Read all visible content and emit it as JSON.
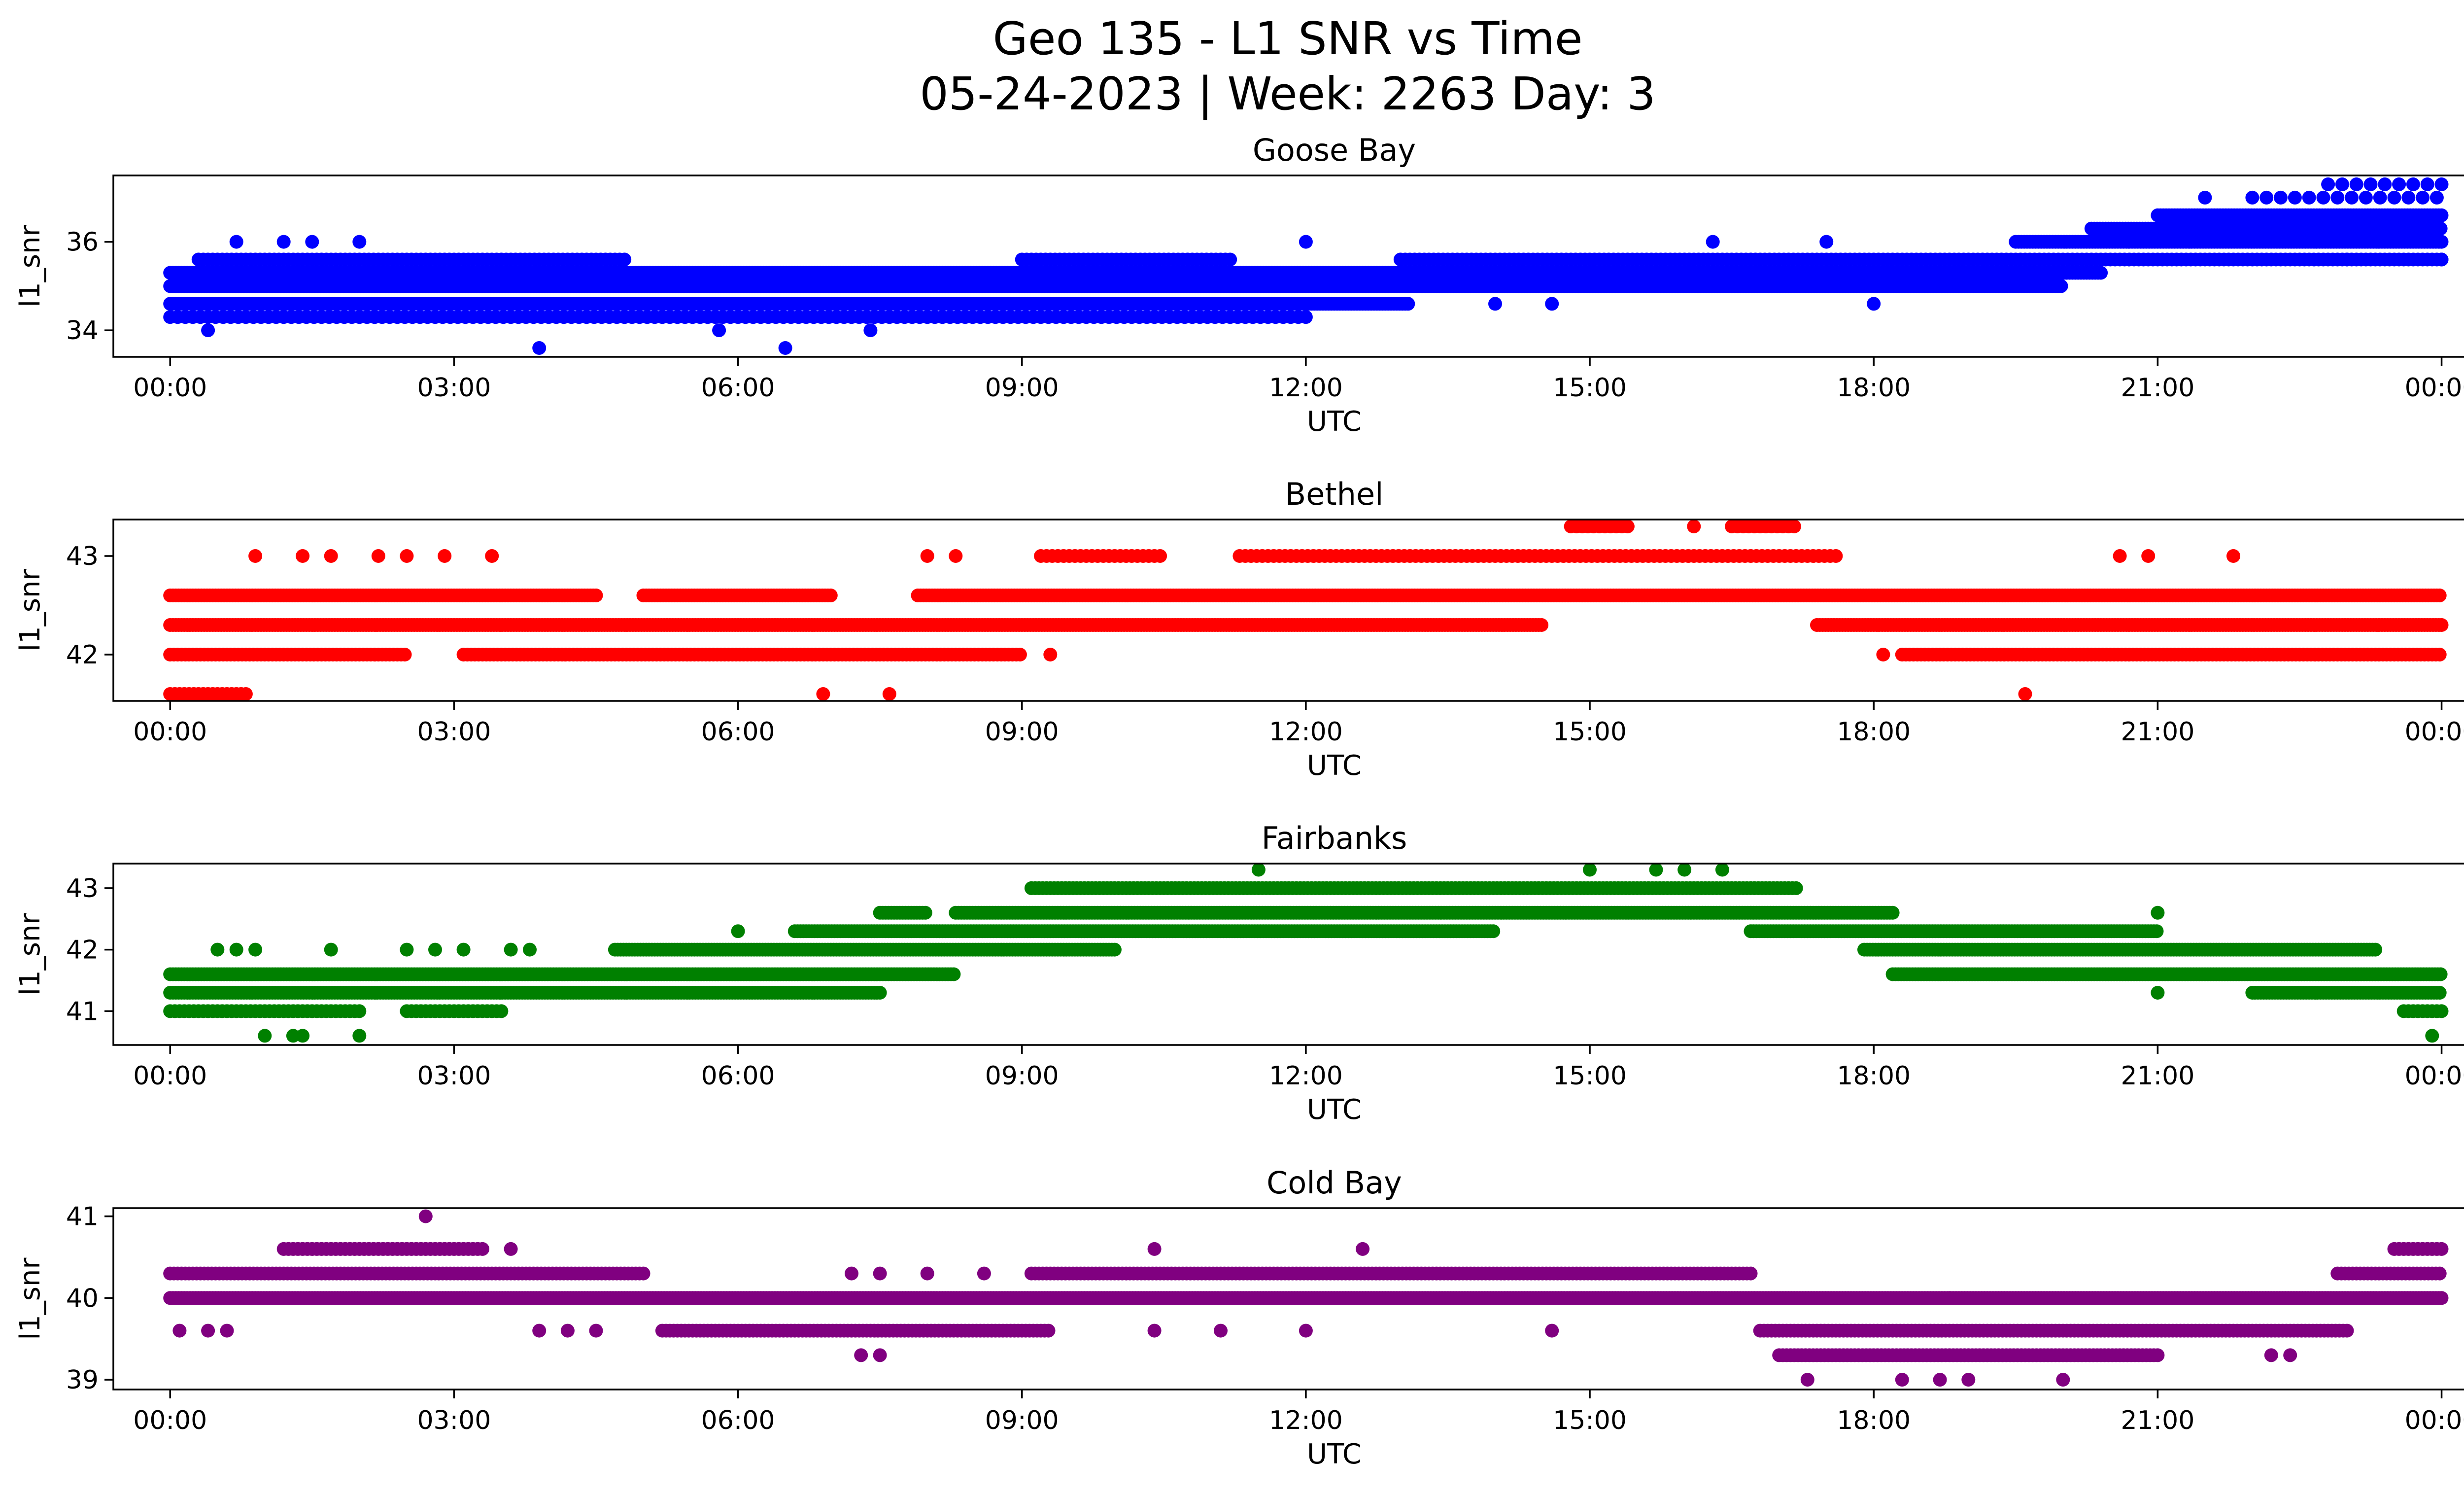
{
  "figure": {
    "title_line1": "Geo 135 - L1 SNR vs Time",
    "title_line2": "05-24-2023 | Week: 2263 Day: 3"
  },
  "chart_data": [
    {
      "type": "scatter",
      "title": "Goose Bay",
      "xlabel": "UTC",
      "ylabel": "l1_snr",
      "xlim_hours": [
        -0.6,
        25.2
      ],
      "ylim": [
        33.4,
        37.5
      ],
      "x_ticks": [
        "00:00",
        "03:00",
        "06:00",
        "09:00",
        "12:00",
        "15:00",
        "18:00",
        "21:00",
        "00:00"
      ],
      "y_ticks": [
        34,
        36
      ],
      "color": "#0000ff",
      "bands": [
        {
          "y": 34.3,
          "x": [
            [
              0.0,
              12.0
            ]
          ],
          "step": 0.08
        },
        {
          "y": 34.6,
          "x": [
            [
              0.0,
              13.1
            ]
          ],
          "step": 0.03
        },
        {
          "y": 35.0,
          "x": [
            [
              0.0,
              20.0
            ]
          ],
          "step": 0.03
        },
        {
          "y": 35.3,
          "x": [
            [
              0.0,
              20.4
            ]
          ],
          "step": 0.03
        },
        {
          "y": 35.6,
          "x": [
            [
              0.3,
              4.8
            ],
            [
              9.0,
              11.2
            ],
            [
              13.0,
              24.0
            ]
          ],
          "step": 0.05
        },
        {
          "y": 36.0,
          "x": [
            [
              19.5,
              24.0
            ]
          ],
          "step": 0.03
        },
        {
          "y": 36.3,
          "x": [
            [
              20.3,
              24.0
            ]
          ],
          "step": 0.03
        },
        {
          "y": 36.6,
          "x": [
            [
              21.0,
              24.0
            ]
          ],
          "step": 0.03
        },
        {
          "y": 37.0,
          "x": [
            [
              22.0,
              24.0
            ]
          ],
          "step": 0.15
        },
        {
          "y": 37.3,
          "x": [
            [
              22.8,
              24.0
            ]
          ],
          "step": 0.15
        }
      ],
      "points": [
        {
          "x": 0.4,
          "y": 34.0
        },
        {
          "x": 3.9,
          "y": 33.6
        },
        {
          "x": 6.5,
          "y": 33.6
        },
        {
          "x": 0.7,
          "y": 36.0
        },
        {
          "x": 1.2,
          "y": 36.0
        },
        {
          "x": 1.5,
          "y": 36.0
        },
        {
          "x": 2.0,
          "y": 36.0
        },
        {
          "x": 5.8,
          "y": 34.0
        },
        {
          "x": 7.4,
          "y": 34.0
        },
        {
          "x": 12.0,
          "y": 36.0
        },
        {
          "x": 14.0,
          "y": 34.6
        },
        {
          "x": 14.6,
          "y": 34.6
        },
        {
          "x": 16.3,
          "y": 36.0
        },
        {
          "x": 17.5,
          "y": 36.0
        },
        {
          "x": 18.0,
          "y": 34.6
        },
        {
          "x": 21.5,
          "y": 37.0
        },
        {
          "x": 23.0,
          "y": 35.6
        },
        {
          "x": 24.0,
          "y": 35.6
        }
      ]
    },
    {
      "type": "scatter",
      "title": "Bethel",
      "xlabel": "UTC",
      "ylabel": "l1_snr",
      "xlim_hours": [
        -0.6,
        25.2
      ],
      "ylim": [
        41.53,
        43.37
      ],
      "x_ticks": [
        "00:00",
        "03:00",
        "06:00",
        "09:00",
        "12:00",
        "15:00",
        "18:00",
        "21:00",
        "00:00"
      ],
      "y_ticks": [
        42,
        43
      ],
      "color": "#ff0000",
      "bands": [
        {
          "y": 41.6,
          "x": [
            [
              0.0,
              0.8
            ]
          ],
          "step": 0.05
        },
        {
          "y": 42.0,
          "x": [
            [
              0.0,
              2.5
            ],
            [
              3.1,
              9.0
            ],
            [
              18.3,
              24.0
            ]
          ],
          "step": 0.04
        },
        {
          "y": 42.3,
          "x": [
            [
              0.0,
              14.5
            ],
            [
              17.4,
              24.0
            ]
          ],
          "step": 0.03
        },
        {
          "y": 42.6,
          "x": [
            [
              0.0,
              4.5
            ],
            [
              5.0,
              7.0
            ],
            [
              7.9,
              24.0
            ]
          ],
          "step": 0.03
        },
        {
          "y": 43.0,
          "x": [
            [
              9.2,
              10.5
            ],
            [
              11.3,
              17.6
            ]
          ],
          "step": 0.06
        },
        {
          "y": 43.3,
          "x": [
            [
              14.8,
              15.4
            ],
            [
              16.5,
              17.2
            ]
          ],
          "step": 0.06
        }
      ],
      "points": [
        {
          "x": 0.9,
          "y": 43.0
        },
        {
          "x": 1.4,
          "y": 43.0
        },
        {
          "x": 1.7,
          "y": 43.0
        },
        {
          "x": 2.2,
          "y": 43.0
        },
        {
          "x": 2.5,
          "y": 43.0
        },
        {
          "x": 2.9,
          "y": 43.0
        },
        {
          "x": 3.4,
          "y": 43.0
        },
        {
          "x": 8.0,
          "y": 43.0
        },
        {
          "x": 8.3,
          "y": 43.0
        },
        {
          "x": 6.9,
          "y": 41.6
        },
        {
          "x": 7.6,
          "y": 41.6
        },
        {
          "x": 9.3,
          "y": 42.0
        },
        {
          "x": 16.1,
          "y": 43.3
        },
        {
          "x": 18.1,
          "y": 42.0
        },
        {
          "x": 19.6,
          "y": 41.6
        },
        {
          "x": 20.6,
          "y": 43.0
        },
        {
          "x": 20.9,
          "y": 43.0
        },
        {
          "x": 21.8,
          "y": 43.0
        }
      ]
    },
    {
      "type": "scatter",
      "title": "Fairbanks",
      "xlabel": "UTC",
      "ylabel": "l1_snr",
      "xlim_hours": [
        -0.6,
        25.2
      ],
      "ylim": [
        40.45,
        43.4
      ],
      "x_ticks": [
        "00:00",
        "03:00",
        "06:00",
        "09:00",
        "12:00",
        "15:00",
        "18:00",
        "21:00",
        "00:00"
      ],
      "y_ticks": [
        41,
        42,
        43
      ],
      "color": "#008000",
      "bands": [
        {
          "y": 41.0,
          "x": [
            [
              0.0,
              2.0
            ],
            [
              2.5,
              3.5
            ],
            [
              23.6,
              24.0
            ]
          ],
          "step": 0.05
        },
        {
          "y": 41.3,
          "x": [
            [
              0.0,
              7.5
            ],
            [
              22.0,
              24.0
            ]
          ],
          "step": 0.03
        },
        {
          "y": 41.6,
          "x": [
            [
              0.0,
              8.3
            ],
            [
              18.2,
              24.0
            ]
          ],
          "step": 0.03
        },
        {
          "y": 42.0,
          "x": [
            [
              4.7,
              10.0
            ],
            [
              17.9,
              23.3
            ]
          ],
          "step": 0.03
        },
        {
          "y": 42.3,
          "x": [
            [
              6.6,
              14.0
            ],
            [
              16.7,
              21.0
            ]
          ],
          "step": 0.03
        },
        {
          "y": 42.6,
          "x": [
            [
              7.5,
              8.0
            ],
            [
              8.3,
              18.2
            ]
          ],
          "step": 0.03
        },
        {
          "y": 43.0,
          "x": [
            [
              9.1,
              17.2
            ]
          ],
          "step": 0.04
        }
      ],
      "points": [
        {
          "x": 1.0,
          "y": 40.6
        },
        {
          "x": 1.3,
          "y": 40.6
        },
        {
          "x": 1.4,
          "y": 40.6
        },
        {
          "x": 2.0,
          "y": 40.6
        },
        {
          "x": 0.5,
          "y": 42.0
        },
        {
          "x": 0.7,
          "y": 42.0
        },
        {
          "x": 0.9,
          "y": 42.0
        },
        {
          "x": 1.7,
          "y": 42.0
        },
        {
          "x": 2.5,
          "y": 42.0
        },
        {
          "x": 2.8,
          "y": 42.0
        },
        {
          "x": 3.1,
          "y": 42.0
        },
        {
          "x": 3.6,
          "y": 42.0
        },
        {
          "x": 3.8,
          "y": 42.0
        },
        {
          "x": 6.0,
          "y": 42.3
        },
        {
          "x": 11.5,
          "y": 43.3
        },
        {
          "x": 15.0,
          "y": 43.3
        },
        {
          "x": 15.7,
          "y": 43.3
        },
        {
          "x": 16.0,
          "y": 43.3
        },
        {
          "x": 16.4,
          "y": 43.3
        },
        {
          "x": 21.0,
          "y": 42.6
        },
        {
          "x": 21.0,
          "y": 41.3
        },
        {
          "x": 23.9,
          "y": 40.6
        }
      ]
    },
    {
      "type": "scatter",
      "title": "Cold Bay",
      "xlabel": "UTC",
      "ylabel": "l1_snr",
      "xlim_hours": [
        -0.6,
        25.2
      ],
      "ylim": [
        38.88,
        41.1
      ],
      "x_ticks": [
        "00:00",
        "03:00",
        "06:00",
        "09:00",
        "12:00",
        "15:00",
        "18:00",
        "21:00",
        "00:00"
      ],
      "y_ticks": [
        39,
        40,
        41
      ],
      "color": "#800080",
      "bands": [
        {
          "y": 39.3,
          "x": [
            [
              17.0,
              21.0
            ]
          ],
          "step": 0.04
        },
        {
          "y": 39.6,
          "x": [
            [
              5.2,
              9.3
            ],
            [
              16.8,
              23.0
            ]
          ],
          "step": 0.04
        },
        {
          "y": 40.0,
          "x": [
            [
              0.0,
              24.0
            ]
          ],
          "step": 0.03
        },
        {
          "y": 40.3,
          "x": [
            [
              0.0,
              5.0
            ],
            [
              9.1,
              16.7
            ],
            [
              22.9,
              24.0
            ]
          ],
          "step": 0.04
        },
        {
          "y": 40.6,
          "x": [
            [
              1.2,
              3.3
            ],
            [
              23.5,
              24.0
            ]
          ],
          "step": 0.05
        }
      ],
      "points": [
        {
          "x": 0.1,
          "y": 39.6
        },
        {
          "x": 0.4,
          "y": 39.6
        },
        {
          "x": 0.6,
          "y": 39.6
        },
        {
          "x": 2.7,
          "y": 41.0
        },
        {
          "x": 3.6,
          "y": 40.6
        },
        {
          "x": 3.9,
          "y": 39.6
        },
        {
          "x": 4.2,
          "y": 39.6
        },
        {
          "x": 4.5,
          "y": 39.6
        },
        {
          "x": 7.2,
          "y": 40.3
        },
        {
          "x": 7.5,
          "y": 40.3
        },
        {
          "x": 8.0,
          "y": 40.3
        },
        {
          "x": 8.6,
          "y": 40.3
        },
        {
          "x": 7.3,
          "y": 39.3
        },
        {
          "x": 7.5,
          "y": 39.3
        },
        {
          "x": 10.4,
          "y": 40.6
        },
        {
          "x": 12.6,
          "y": 40.6
        },
        {
          "x": 10.4,
          "y": 39.6
        },
        {
          "x": 11.1,
          "y": 39.6
        },
        {
          "x": 12.0,
          "y": 39.6
        },
        {
          "x": 14.6,
          "y": 39.6
        },
        {
          "x": 17.3,
          "y": 39.0
        },
        {
          "x": 18.3,
          "y": 39.0
        },
        {
          "x": 18.7,
          "y": 39.0
        },
        {
          "x": 19.0,
          "y": 39.0
        },
        {
          "x": 20.0,
          "y": 39.0
        },
        {
          "x": 18.8,
          "y": 40.0
        },
        {
          "x": 22.2,
          "y": 39.3
        },
        {
          "x": 22.4,
          "y": 39.3
        }
      ]
    }
  ]
}
